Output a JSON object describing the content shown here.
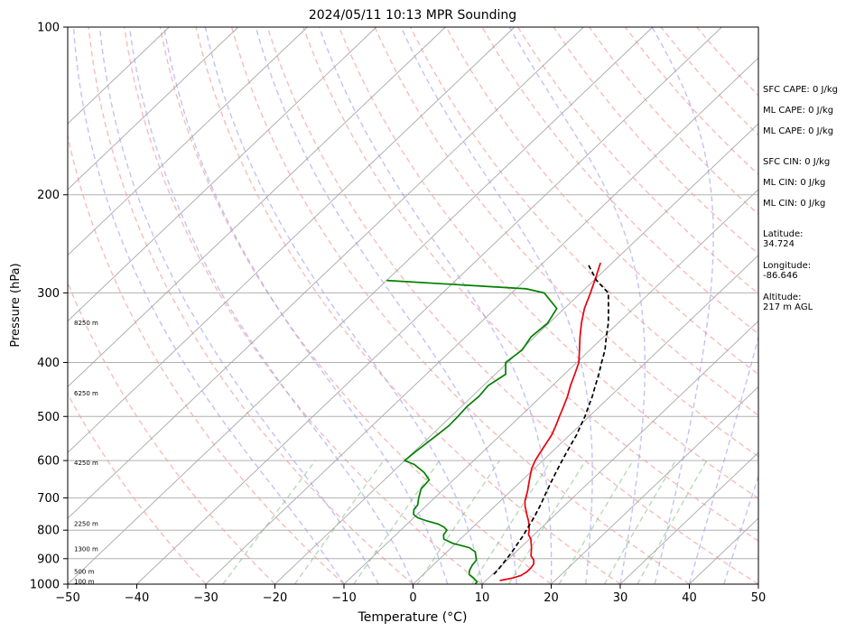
{
  "chart_data": {
    "type": "line",
    "title": "2024/05/11 10:13 MPR Sounding",
    "xlabel": "Temperature (°C)",
    "ylabel": "Pressure (hPa)",
    "xlim": [
      -50,
      50
    ],
    "ylim": [
      1000,
      100
    ],
    "y_scale": "log",
    "grid": true,
    "x_ticks": [
      -50,
      -40,
      -30,
      -20,
      -10,
      0,
      10,
      20,
      30,
      40,
      50
    ],
    "y_ticks": [
      1000,
      900,
      800,
      700,
      600,
      500,
      400,
      300,
      200,
      100
    ],
    "height_labels": [
      {
        "label": "100 m",
        "p": 990
      },
      {
        "label": "500 m",
        "p": 950
      },
      {
        "label": "1300 m",
        "p": 866
      },
      {
        "label": "2250 m",
        "p": 780
      },
      {
        "label": "4250 m",
        "p": 606
      },
      {
        "label": "6250 m",
        "p": 455
      },
      {
        "label": "8250 m",
        "p": 340
      }
    ],
    "annotations": [
      {
        "label": "SFC CAPE: 0 J/kg"
      },
      {
        "label": "ML CAPE: 0 J/kg"
      },
      {
        "label": "ML CAPE: 0 J/kg"
      },
      {
        "label": "SFC CIN: 0 J/kg"
      },
      {
        "label": "ML CIN: 0 J/kg"
      },
      {
        "label": "ML CIN: 0 J/kg"
      },
      {
        "label": "Latitude:",
        "value": "34.724"
      },
      {
        "label": "Longitude:",
        "value": "-86.646"
      },
      {
        "label": "Altitude:",
        "value": "217 m AGL"
      }
    ],
    "series": [
      {
        "color": "#e8000b",
        "p": [
          985,
          975,
          965,
          950,
          935,
          920,
          905,
          890,
          875,
          860,
          845,
          830,
          815,
          800,
          785,
          770,
          755,
          740,
          725,
          710,
          695,
          680,
          665,
          650,
          635,
          620,
          600,
          580,
          560,
          540,
          520,
          500,
          480,
          460,
          440,
          420,
          400,
          380,
          360,
          340,
          320,
          300,
          280,
          265
        ],
        "t": [
          12,
          13.5,
          14.3,
          14.6,
          14.6,
          14.4,
          13.8,
          12.8,
          12.2,
          11.6,
          10.9,
          10.2,
          9.2,
          8.6,
          7.9,
          7.1,
          6.2,
          5.3,
          4.4,
          3.6,
          3.0,
          2.4,
          1.7,
          1.0,
          0.3,
          -0.4,
          -1.1,
          -1.6,
          -2.1,
          -2.6,
          -3.4,
          -4.3,
          -5.2,
          -6.2,
          -7.4,
          -8.5,
          -9.7,
          -11.5,
          -13.4,
          -15.3,
          -17.1,
          -18.6,
          -20.3,
          -21.7
        ]
      },
      {
        "color": "#008000",
        "p": [
          1000,
          990,
          975,
          960,
          945,
          925,
          905,
          890,
          875,
          860,
          845,
          830,
          815,
          800,
          790,
          780,
          770,
          760,
          750,
          735,
          720,
          700,
          675,
          650,
          630,
          610,
          600,
          580,
          560,
          540,
          520,
          500,
          480,
          460,
          440,
          420,
          400,
          380,
          360,
          340,
          320,
          300,
          295,
          285
        ],
        "t": [
          9.0,
          8.9,
          7.8,
          6.6,
          6.1,
          5.7,
          5.5,
          4.8,
          4.1,
          2.6,
          -0.4,
          -2.4,
          -3.1,
          -3.3,
          -4.2,
          -5.5,
          -7.6,
          -9.4,
          -10.5,
          -11.2,
          -11.4,
          -12.3,
          -13.3,
          -13.5,
          -15.4,
          -18.0,
          -20.0,
          -19.8,
          -19.5,
          -19.2,
          -18.9,
          -19.0,
          -19.2,
          -19.0,
          -19.3,
          -18.5,
          -20.3,
          -19.8,
          -20.5,
          -20.2,
          -21.1,
          -25.3,
          -28.5,
          -50.0
        ]
      },
      {
        "color": "#000000",
        "dashed": true,
        "p": [
          960,
          940,
          920,
          900,
          880,
          860,
          840,
          820,
          800,
          780,
          760,
          740,
          720,
          700,
          680,
          660,
          640,
          620,
          600,
          580,
          560,
          540,
          520,
          500,
          480,
          460,
          440,
          420,
          400,
          380,
          360,
          340,
          320,
          300,
          285,
          265
        ],
        "t": [
          10.2,
          10.1,
          9.9,
          9.7,
          9.5,
          9.2,
          8.9,
          8.6,
          8.2,
          7.8,
          7.4,
          6.9,
          6.4,
          5.8,
          5.2,
          4.6,
          4.0,
          3.4,
          2.8,
          2.2,
          1.6,
          1.0,
          0.2,
          -0.6,
          -1.6,
          -2.6,
          -3.8,
          -5.0,
          -6.4,
          -7.8,
          -9.6,
          -11.4,
          -13.6,
          -16.0,
          -19.6,
          -23.6
        ]
      }
    ]
  }
}
